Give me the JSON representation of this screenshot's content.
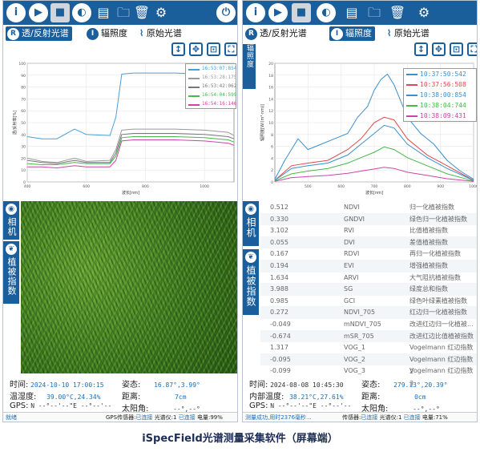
{
  "caption": "iSpecField光谱测量采集软件（屏幕端）",
  "toolbar": {
    "icons": [
      "info-icon",
      "play-icon",
      "stop-icon",
      "contrast-icon",
      "save-icon",
      "folder-add-icon",
      "trash-icon",
      "gear-icon",
      "power-icon"
    ],
    "info_glyph": "i",
    "accent": "#1a5e9c"
  },
  "left": {
    "modes": {
      "reflect": "透/反射光谱",
      "irradiance": "辐照度",
      "raw": "原始光谱",
      "badge_r": "R",
      "badge_i": "I"
    },
    "chart_data": {
      "type": "line",
      "xlabel": "波长[nm]",
      "ylabel": "透/反射率[%]",
      "ylim": [
        0,
        110
      ],
      "xlim": [
        400,
        1100
      ],
      "x_ticks": [
        "400",
        "600",
        "800",
        "1000"
      ],
      "y_ticks": [
        "100",
        "90",
        "80",
        "70",
        "60",
        "50",
        "40",
        "30",
        "20",
        "10",
        "0"
      ],
      "series": [
        {
          "name": "16:53:07:854",
          "color": "#4a9fd8",
          "values": [
            [
              400,
              42
            ],
            [
              450,
              40
            ],
            [
              500,
              40
            ],
            [
              560,
              49
            ],
            [
              600,
              44
            ],
            [
              680,
              43
            ],
            [
              700,
              60
            ],
            [
              720,
              100
            ],
            [
              760,
              101
            ],
            [
              900,
              101
            ],
            [
              1000,
              100
            ],
            [
              1080,
              96
            ],
            [
              1100,
              90
            ]
          ]
        },
        {
          "name": "16:53:28:175",
          "color": "#999999",
          "values": [
            [
              400,
              22
            ],
            [
              450,
              19
            ],
            [
              500,
              18
            ],
            [
              560,
              22
            ],
            [
              600,
              19
            ],
            [
              680,
              20
            ],
            [
              700,
              30
            ],
            [
              720,
              48
            ],
            [
              760,
              49
            ],
            [
              900,
              49
            ],
            [
              1000,
              48
            ],
            [
              1080,
              46
            ],
            [
              1100,
              43
            ]
          ]
        },
        {
          "name": "16:53:42:062",
          "color": "#777777",
          "values": [
            [
              400,
              20
            ],
            [
              450,
              18
            ],
            [
              500,
              17
            ],
            [
              560,
              20
            ],
            [
              600,
              18
            ],
            [
              680,
              18
            ],
            [
              700,
              27
            ],
            [
              720,
              44
            ],
            [
              760,
              45
            ],
            [
              900,
              45
            ],
            [
              1000,
              44
            ],
            [
              1080,
              42
            ],
            [
              1100,
              40
            ]
          ]
        },
        {
          "name": "16:54:04:599",
          "color": "#47b84a",
          "values": [
            [
              400,
              17
            ],
            [
              450,
              16
            ],
            [
              500,
              16
            ],
            [
              560,
              18
            ],
            [
              600,
              17
            ],
            [
              680,
              17
            ],
            [
              700,
              24
            ],
            [
              720,
              41
            ],
            [
              760,
              42
            ],
            [
              900,
              42
            ],
            [
              1000,
              41
            ],
            [
              1080,
              39
            ],
            [
              1100,
              37
            ]
          ]
        },
        {
          "name": "16:54:16:146",
          "color": "#cc44aa",
          "values": [
            [
              400,
              14
            ],
            [
              450,
              14
            ],
            [
              500,
              13
            ],
            [
              560,
              15
            ],
            [
              600,
              14
            ],
            [
              680,
              14
            ],
            [
              700,
              20
            ],
            [
              720,
              38
            ],
            [
              760,
              39
            ],
            [
              900,
              39
            ],
            [
              1000,
              38
            ],
            [
              1080,
              36
            ],
            [
              1100,
              34
            ]
          ]
        }
      ]
    },
    "side_top": "相机",
    "side_bottom": "植被指数",
    "info": {
      "time_label": "时间:",
      "time_value": "2024-10-10 17:00:15",
      "attitude_label": "姿态:",
      "attitude_value": "16.87°,3.99°",
      "temp_label": "温湿度:",
      "temp_value": "39.00°C,24.34%",
      "distance_label": "距离:",
      "distance_value": "7cm",
      "gps_label": "GPS:",
      "gps_value": "N --°--'--\"E --°--'--",
      "sun_label": "太阳角:",
      "sun_value": "--°,--°"
    },
    "status": {
      "state": "就绪",
      "gps_sensor": "GPS传感器:",
      "gps_conn": "已连接",
      "spectro": "光谱仪:1",
      "spectro_conn": "已连接",
      "battery": "电量:99%"
    }
  },
  "right": {
    "modes": {
      "reflect": "透/反射光谱",
      "irradiance": "辐照度",
      "raw": "原始光谱",
      "badge_r": "R",
      "badge_i": "I"
    },
    "side_chart_tab": "辐照度",
    "chart_data": {
      "type": "line",
      "xlabel": "波长[nm]",
      "ylabel": "辐照度[W/(m²·nm)]",
      "ylim": [
        0,
        22
      ],
      "xlim": [
        400,
        1000
      ],
      "x_ticks": [
        "500",
        "600",
        "700",
        "800",
        "900",
        "1000"
      ],
      "y_ticks": [
        "20",
        "18",
        "16",
        "14",
        "12",
        "10",
        "8",
        "6",
        "4",
        "2",
        "0"
      ],
      "series": [
        {
          "name": "10:37:50:542",
          "color": "#3a8fd0",
          "values": [
            [
              400,
              0.5
            ],
            [
              430,
              4
            ],
            [
              450,
              6
            ],
            [
              470,
              8
            ],
            [
              500,
              6
            ],
            [
              540,
              7
            ],
            [
              580,
              8
            ],
            [
              620,
              9
            ],
            [
              650,
              12
            ],
            [
              680,
              14
            ],
            [
              700,
              17
            ],
            [
              720,
              19
            ],
            [
              740,
              20
            ],
            [
              760,
              18
            ],
            [
              800,
              12
            ],
            [
              840,
              9
            ],
            [
              880,
              7
            ],
            [
              920,
              4
            ],
            [
              960,
              2
            ],
            [
              1000,
              0.5
            ]
          ]
        },
        {
          "name": "10:37:56:508",
          "color": "#e04a4a",
          "values": [
            [
              400,
              0.3
            ],
            [
              450,
              3
            ],
            [
              500,
              3.5
            ],
            [
              560,
              4
            ],
            [
              620,
              6
            ],
            [
              660,
              8
            ],
            [
              700,
              11
            ],
            [
              730,
              12
            ],
            [
              760,
              11.5
            ],
            [
              800,
              8
            ],
            [
              860,
              5
            ],
            [
              920,
              3
            ],
            [
              1000,
              0.3
            ]
          ]
        },
        {
          "name": "10:38:00:854",
          "color": "#3a8fd0",
          "values": [
            [
              400,
              0.3
            ],
            [
              450,
              2.5
            ],
            [
              500,
              3
            ],
            [
              560,
              3.5
            ],
            [
              620,
              5
            ],
            [
              660,
              7
            ],
            [
              700,
              9
            ],
            [
              730,
              10.5
            ],
            [
              760,
              10
            ],
            [
              800,
              7
            ],
            [
              860,
              4.5
            ],
            [
              920,
              2.5
            ],
            [
              1000,
              0.3
            ]
          ]
        },
        {
          "name": "10:38:04:744",
          "color": "#47b84a",
          "values": [
            [
              400,
              0.2
            ],
            [
              450,
              1.5
            ],
            [
              500,
              2
            ],
            [
              560,
              2.5
            ],
            [
              620,
              3.5
            ],
            [
              660,
              4.5
            ],
            [
              700,
              5.5
            ],
            [
              730,
              6.5
            ],
            [
              760,
              6
            ],
            [
              800,
              4.5
            ],
            [
              860,
              3
            ],
            [
              920,
              1.5
            ],
            [
              1000,
              0.2
            ]
          ]
        },
        {
          "name": "10:38:09:431",
          "color": "#cc44aa",
          "values": [
            [
              400,
              0.1
            ],
            [
              450,
              0.8
            ],
            [
              500,
              1
            ],
            [
              560,
              1.2
            ],
            [
              620,
              1.6
            ],
            [
              660,
              2
            ],
            [
              700,
              2.4
            ],
            [
              730,
              2.7
            ],
            [
              760,
              2.5
            ],
            [
              800,
              1.8
            ],
            [
              860,
              1.2
            ],
            [
              920,
              0.6
            ],
            [
              1000,
              0.1
            ]
          ]
        }
      ]
    },
    "side_top": "相机",
    "side_bottom": "植被指数",
    "indices": [
      {
        "value": "0.512",
        "code": "NDVI",
        "name": "归一化植被指数"
      },
      {
        "value": "0.330",
        "code": "GNDVI",
        "name": "绿色归一化植被指数"
      },
      {
        "value": "3.102",
        "code": "RVI",
        "name": "比值植被指数"
      },
      {
        "value": "0.055",
        "code": "DVI",
        "name": "差值植被指数"
      },
      {
        "value": "0.167",
        "code": "RDVI",
        "name": "再归一化植被指数"
      },
      {
        "value": "0.194",
        "code": "EVI",
        "name": "增强植被指数"
      },
      {
        "value": "1.634",
        "code": "ARVI",
        "name": "大气阻抗植被指数"
      },
      {
        "value": "3.988",
        "code": "SG",
        "name": "绿度总和指数"
      },
      {
        "value": "0.985",
        "code": "GCI",
        "name": "绿色叶绿素植被指数"
      },
      {
        "value": "0.272",
        "code": "NDVI_705",
        "name": "红边归一化植被指数"
      },
      {
        "value": "-0.049",
        "code": "mNDVI_705",
        "name": "改进红边归一化植被..."
      },
      {
        "value": "-0.674",
        "code": "mSR_705",
        "name": "改进红边比值植被指数"
      },
      {
        "value": "1.317",
        "code": "VOG_1",
        "name": "Vogelmann 红边指数 1"
      },
      {
        "value": "-0.095",
        "code": "VOG_2",
        "name": "Vogelmann 红边指数 2"
      },
      {
        "value": "-0.099",
        "code": "VOG_3",
        "name": "Vogelmann 红边指数 3"
      }
    ],
    "info": {
      "time_label": "时间:",
      "time_value": "2024-08-08 10:45:30",
      "attitude_label": "姿态:",
      "attitude_value": "279.13°,20.39°",
      "temp_label": "内部温度:",
      "temp_value": "38.21°C,27.61%",
      "distance_label": "距离:",
      "distance_value": "0cm",
      "gps_label": "GPS:",
      "gps_value": "N --°--'--\"E --°--'--",
      "sun_label": "太阳角:",
      "sun_value": "--°,--°"
    },
    "status": {
      "state": "测量成功,用时2376毫秒...",
      "gps_sensor": "传感器:",
      "gps_conn": "已连接",
      "spectro": "光谱仪:1",
      "spectro_conn": "已连接",
      "battery": "电量:71%"
    }
  }
}
